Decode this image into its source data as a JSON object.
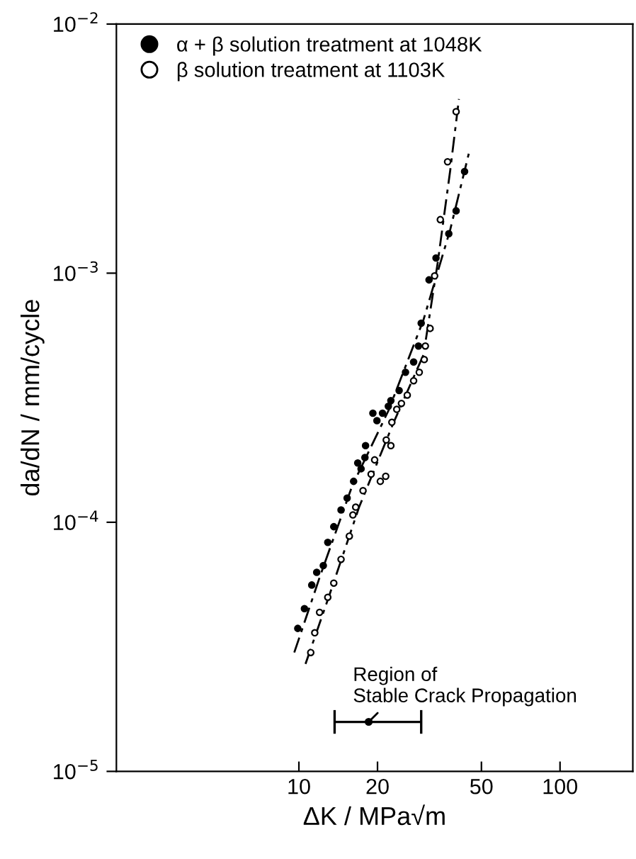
{
  "chart_data": {
    "type": "scatter",
    "xlabel": "ΔK / MPa√m",
    "ylabel": "da/dN / mm/cycle",
    "log": "xy",
    "xlim": [
      2,
      190
    ],
    "ylim": [
      1e-05,
      0.01
    ],
    "xticks": [
      10,
      20,
      50,
      100
    ],
    "yticks": [
      {
        "value": 1e-05,
        "label": "10$^{−5}$"
      },
      {
        "value": 0.0001,
        "label": "10$^{−4}$"
      },
      {
        "value": 0.001,
        "label": "10$^{−3}$"
      },
      {
        "value": 0.01,
        "label": "10$^{−2}$"
      }
    ],
    "grid": false,
    "legend": "top left",
    "marker": "circle",
    "series": [
      {
        "name": "α + β solution treatment at 1048K",
        "color": "#000000",
        "type": "scatter",
        "x": [
          9.9,
          10.5,
          11.2,
          11.7,
          12.4,
          12.9,
          13.6,
          14.5,
          15.3,
          16.2,
          16.8,
          17.3,
          17.9,
          18.0,
          19.2,
          19.9,
          20.9,
          22.0,
          22.5,
          24.2,
          25.6,
          27.5,
          28.7,
          29.4,
          31.5,
          33.5,
          37.5,
          40.0,
          43.1
        ],
        "values": [
          3.75e-05,
          4.5e-05,
          5.6e-05,
          6.3e-05,
          6.7e-05,
          8.3e-05,
          9.6e-05,
          0.000112,
          0.000125,
          0.000146,
          0.000173,
          0.000164,
          0.000182,
          0.000203,
          0.000274,
          0.000256,
          0.000274,
          0.000292,
          0.000308,
          0.000338,
          0.0004,
          0.00044,
          0.00051,
          0.00063,
          0.00094,
          0.00115,
          0.00144,
          0.00178,
          0.00256
        ]
      },
      {
        "name": "β solution treatment at 1103K",
        "color": "#ffffff",
        "type": "scatter",
        "x": [
          11.1,
          11.5,
          12.0,
          12.9,
          13.6,
          14.5,
          15.6,
          16.1,
          16.5,
          17.6,
          18.9,
          19.5,
          20.5,
          21.5,
          22.5,
          21.6,
          22.7,
          23.7,
          24.7,
          26.0,
          27.5,
          28.9,
          30.2,
          30.5,
          31.8,
          33.1,
          34.8,
          37.1,
          40.0
        ],
        "values": [
          3e-05,
          3.6e-05,
          4.35e-05,
          5e-05,
          5.7e-05,
          7.1e-05,
          8.8e-05,
          0.000107,
          0.000115,
          0.000134,
          0.000156,
          0.000178,
          0.000146,
          0.000153,
          0.000203,
          0.000214,
          0.000252,
          0.000284,
          0.0003,
          0.000324,
          0.00037,
          0.0004,
          0.00045,
          0.00051,
          0.0006,
          0.000975,
          0.00164,
          0.0028,
          0.00445
        ]
      },
      {
        "color": "#000000",
        "type": "line",
        "line_style": "dashed",
        "marker": "none",
        "x": [
          9.6,
          12,
          16,
          22,
          30,
          38,
          45
        ],
        "values": [
          3e-05,
          6e-05,
          0.00014,
          0.00028,
          0.00065,
          0.0015,
          0.0031
        ]
      },
      {
        "color": "#000000",
        "type": "line",
        "line_style": "dashed",
        "marker": "none",
        "x": [
          10.6,
          13,
          17,
          23,
          30,
          34,
          38,
          41
        ],
        "values": [
          2.7e-05,
          5e-05,
          0.000115,
          0.00025,
          0.00047,
          0.0011,
          0.0026,
          0.005
        ]
      },
      {
        "color": "#000000",
        "marker": "circle",
        "x": [
          18.5
        ],
        "values": [
          1.58e-05
        ],
        "xerrors": [
          [
            13.7,
            29.4
          ]
        ]
      }
    ],
    "annotations": [
      {
        "text": "Region of\nStable Crack Propagation",
        "x": 18.5,
        "y": 1.58e-05
      }
    ]
  }
}
